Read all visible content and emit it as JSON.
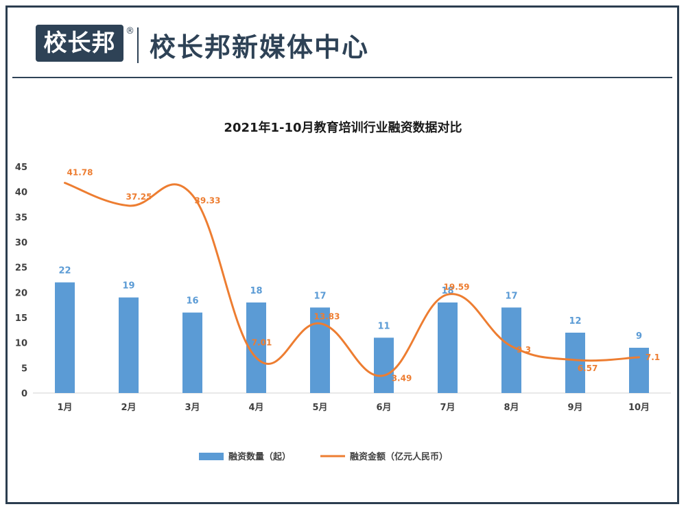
{
  "header": {
    "logo_text": "校长邦",
    "registered_mark": "®",
    "brand_name": "校长邦新媒体中心"
  },
  "colors": {
    "bar": "#5b9bd5",
    "line": "#ed7d31",
    "brand": "#2e4256"
  },
  "chart_data": {
    "type": "bar",
    "title": "2021年1-10月教育培训行业融资数据对比",
    "categories": [
      "1月",
      "2月",
      "3月",
      "4月",
      "5月",
      "6月",
      "7月",
      "8月",
      "9月",
      "10月"
    ],
    "ylim": [
      0,
      45
    ],
    "yticks": [
      0,
      5,
      10,
      15,
      20,
      25,
      30,
      35,
      40,
      45
    ],
    "grid": false,
    "legend_position": "bottom",
    "series": [
      {
        "name": "融资数量（起）",
        "type": "bar",
        "values": [
          22,
          19,
          16,
          18,
          17,
          11,
          18,
          17,
          12,
          9
        ],
        "labels": [
          "22",
          "19",
          "16",
          "18",
          "17",
          "11",
          "18",
          "17",
          "12",
          "9"
        ]
      },
      {
        "name": "融资金额（亿元人民币）",
        "type": "line",
        "values": [
          41.78,
          37.25,
          39.33,
          7.01,
          13.83,
          3.49,
          19.59,
          9.3,
          6.57,
          7.1
        ],
        "labels": [
          "41.78",
          "37.25",
          "39.33",
          "7.01",
          "13.83",
          "3.49",
          "19.59",
          "9.3",
          "6.57",
          "7.1"
        ]
      }
    ]
  }
}
